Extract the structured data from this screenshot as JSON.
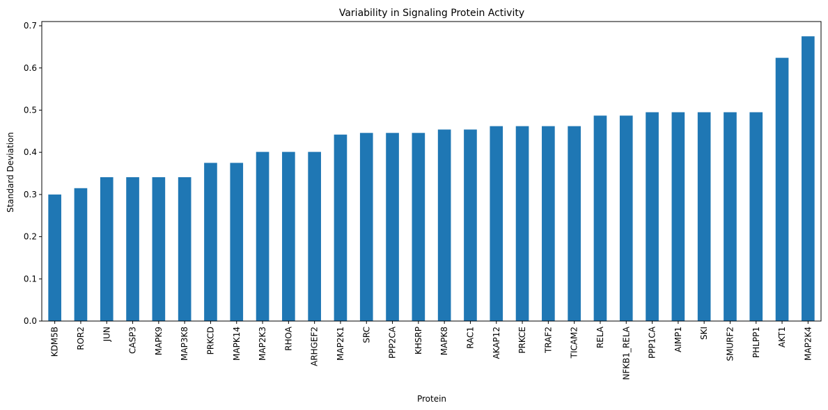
{
  "chart_data": {
    "type": "bar",
    "title": "Variability in Signaling Protein Activity",
    "xlabel": "Protein",
    "ylabel": "Standard Deviation",
    "ylim": [
      0,
      0.71
    ],
    "yticks": [
      0.0,
      0.1,
      0.2,
      0.3,
      0.4,
      0.5,
      0.6,
      0.7
    ],
    "ytick_labels": [
      "0.0",
      "0.1",
      "0.2",
      "0.3",
      "0.4",
      "0.5",
      "0.6",
      "0.7"
    ],
    "grid": false,
    "bar_color": "#1f77b4",
    "categories": [
      "KDM5B",
      "ROR2",
      "JUN",
      "CASP3",
      "MAPK9",
      "MAP3K8",
      "PRKCD",
      "MAPK14",
      "MAP2K3",
      "RHOA",
      "ARHGEF2",
      "MAP2K1",
      "SRC",
      "PPP2CA",
      "KHSRP",
      "MAPK8",
      "RAC1",
      "AKAP12",
      "PRKCE",
      "TRAF2",
      "TICAM2",
      "RELA",
      "NFKB1_RELA",
      "PPP1CA",
      "AIMP1",
      "SKI",
      "SMURF2",
      "PHLPP1",
      "AKT1",
      "MAP2K4"
    ],
    "values": [
      0.3,
      0.315,
      0.341,
      0.341,
      0.341,
      0.341,
      0.375,
      0.375,
      0.401,
      0.401,
      0.401,
      0.442,
      0.446,
      0.446,
      0.446,
      0.454,
      0.454,
      0.462,
      0.462,
      0.462,
      0.462,
      0.487,
      0.487,
      0.495,
      0.495,
      0.495,
      0.495,
      0.495,
      0.624,
      0.675
    ]
  }
}
